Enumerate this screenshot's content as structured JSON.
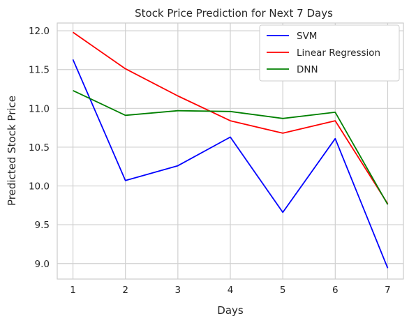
{
  "chart_data": {
    "type": "line",
    "title": "Stock Price Prediction for Next 7 Days",
    "xlabel": "Days",
    "ylabel": "Predicted Stock Price",
    "x": [
      1,
      2,
      3,
      4,
      5,
      6,
      7
    ],
    "x_ticks": [
      "1",
      "2",
      "3",
      "4",
      "5",
      "6",
      "7"
    ],
    "y_ticks": [
      "9.0",
      "9.5",
      "10.0",
      "10.5",
      "11.0",
      "11.5",
      "12.0"
    ],
    "xlim": [
      0.7,
      7.3
    ],
    "ylim": [
      8.8,
      12.1
    ],
    "grid": true,
    "legend_position": "top-right",
    "series": [
      {
        "name": "SVM",
        "color": "#0000ff",
        "values": [
          11.63,
          10.07,
          10.26,
          10.63,
          9.66,
          10.61,
          8.94
        ]
      },
      {
        "name": "Linear Regression",
        "color": "#ff0000",
        "values": [
          11.98,
          11.51,
          11.16,
          10.84,
          10.68,
          10.84,
          9.77
        ]
      },
      {
        "name": "DNN",
        "color": "#008000",
        "values": [
          11.23,
          10.91,
          10.97,
          10.96,
          10.87,
          10.95,
          9.76
        ]
      }
    ]
  }
}
